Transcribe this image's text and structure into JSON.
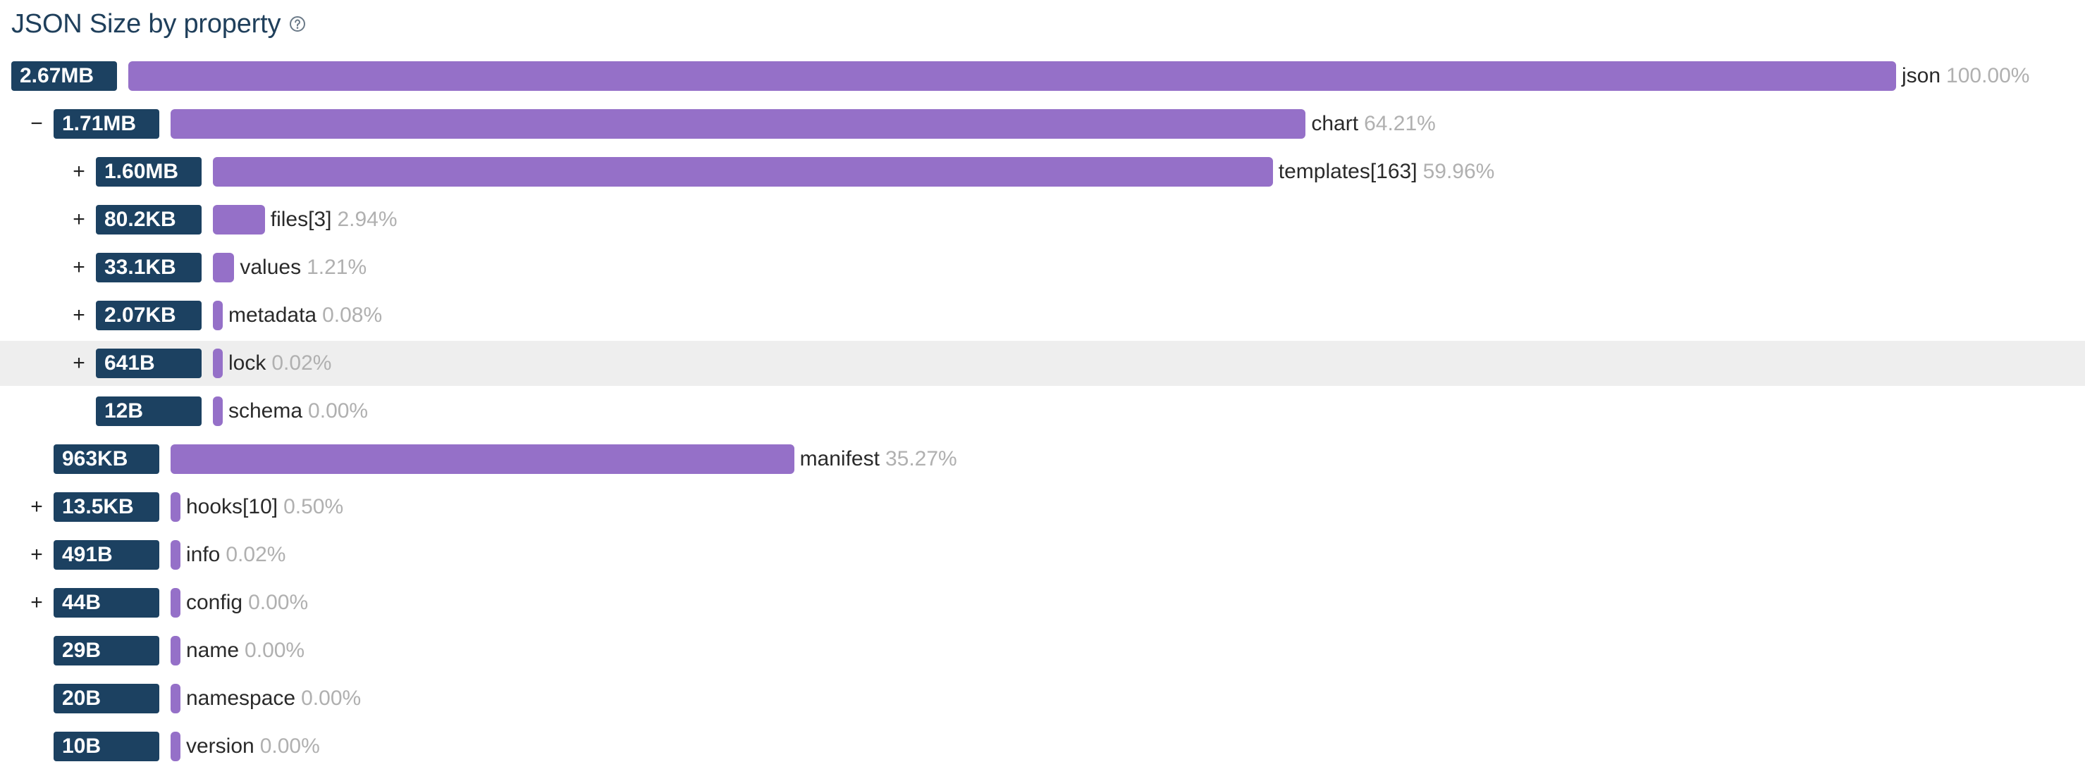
{
  "title": "JSON Size by property",
  "help_icon": "question-circle-icon",
  "colors": {
    "bar": "#9570c8",
    "badge": "#1c4161",
    "title": "#1f3f5b",
    "percent": "#b0b0b0",
    "highlight": "#eeeeee"
  },
  "chart_data": {
    "type": "bar",
    "title": "JSON Size by property",
    "rows": [
      {
        "name": "json",
        "size": "2.67MB",
        "percent_label": "100.00%",
        "percent": 100.0,
        "depth": 0,
        "toggle": ""
      },
      {
        "name": "chart",
        "size": "1.71MB",
        "percent_label": "64.21%",
        "percent": 64.21,
        "depth": 1,
        "toggle": "−"
      },
      {
        "name": "templates[163]",
        "size": "1.60MB",
        "percent_label": "59.96%",
        "percent": 59.96,
        "depth": 2,
        "toggle": "+"
      },
      {
        "name": "files[3]",
        "size": "80.2KB",
        "percent_label": "2.94%",
        "percent": 2.94,
        "depth": 2,
        "toggle": "+"
      },
      {
        "name": "values",
        "size": "33.1KB",
        "percent_label": "1.21%",
        "percent": 1.21,
        "depth": 2,
        "toggle": "+"
      },
      {
        "name": "metadata",
        "size": "2.07KB",
        "percent_label": "0.08%",
        "percent": 0.08,
        "depth": 2,
        "toggle": "+"
      },
      {
        "name": "lock",
        "size": "641B",
        "percent_label": "0.02%",
        "percent": 0.02,
        "depth": 2,
        "toggle": "+",
        "highlighted": true
      },
      {
        "name": "schema",
        "size": "12B",
        "percent_label": "0.00%",
        "percent": 0.0,
        "depth": 2,
        "toggle": ""
      },
      {
        "name": "manifest",
        "size": "963KB",
        "percent_label": "35.27%",
        "percent": 35.27,
        "depth": 1,
        "toggle": ""
      },
      {
        "name": "hooks[10]",
        "size": "13.5KB",
        "percent_label": "0.50%",
        "percent": 0.5,
        "depth": 1,
        "toggle": "+"
      },
      {
        "name": "info",
        "size": "491B",
        "percent_label": "0.02%",
        "percent": 0.02,
        "depth": 1,
        "toggle": "+"
      },
      {
        "name": "config",
        "size": "44B",
        "percent_label": "0.00%",
        "percent": 0.0,
        "depth": 1,
        "toggle": "+"
      },
      {
        "name": "name",
        "size": "29B",
        "percent_label": "0.00%",
        "percent": 0.0,
        "depth": 1,
        "toggle": ""
      },
      {
        "name": "namespace",
        "size": "20B",
        "percent_label": "0.00%",
        "percent": 0.0,
        "depth": 1,
        "toggle": ""
      },
      {
        "name": "version",
        "size": "10B",
        "percent_label": "0.00%",
        "percent": 0.0,
        "depth": 1,
        "toggle": ""
      }
    ]
  }
}
